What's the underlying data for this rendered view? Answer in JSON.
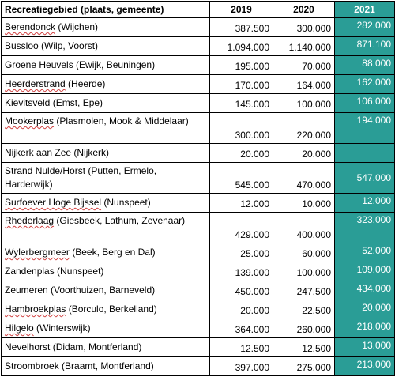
{
  "table": {
    "headers": {
      "name": "Recreatiegebied (plaats, gemeente)",
      "y2019": "2019",
      "y2020": "2020",
      "y2021": "2021"
    },
    "rows": [
      {
        "name": "Berendonck",
        "sub": " (Wijchen)",
        "v2019": "387.500",
        "v2020": "300.000",
        "v2021": "282.000"
      },
      {
        "name": "Bussloo",
        "sub": " (Wilp, Voorst)",
        "v2019": "1.094.000",
        "v2020": "1.140.000",
        "v2021": "871.100"
      },
      {
        "name": "Groene Heuvels",
        "sub": " (Ewijk, Beuningen)",
        "v2019": "195.000",
        "v2020": "70.000",
        "v2021": "88.000"
      },
      {
        "name": "Heerderstrand",
        "sub": " (Heerde)",
        "v2019": "170.000",
        "v2020": "164.000",
        "v2021": "162.000"
      },
      {
        "name": "Kievitsveld",
        "sub": " (Emst, Epe)",
        "v2019": "145.000",
        "v2020": "100.000",
        "v2021": "106.000"
      },
      {
        "name": "Mookerplas",
        "sub": " (Plasmolen, Mook & Middelaar)",
        "v2019": "300.000",
        "v2020": "220.000",
        "v2021": "194.000"
      },
      {
        "name": "Nijkerk aan Zee",
        "sub": " (Nijkerk)",
        "v2019": "20.000",
        "v2020": "20.000",
        "v2021": ""
      },
      {
        "name": "Strand Nulde/Horst",
        "sub": " (Putten, Ermelo, Harderwijk)",
        "v2019": "545.000",
        "v2020": "470.000",
        "v2021": "547.000"
      },
      {
        "name": "Surfoever Hoge Bijssel",
        "sub": " (Nunspeet)",
        "v2019": "12.000",
        "v2020": "10.000",
        "v2021": "12.000"
      },
      {
        "name": "Rhederlaag",
        "sub": " (Giesbeek, Lathum, Zevenaar)",
        "v2019": "429.000",
        "v2020": "400.000",
        "v2021": "323.000"
      },
      {
        "name": "Wylerbergmeer",
        "sub": " (Beek, Berg en Dal)",
        "v2019": "25.000",
        "v2020": "60.000",
        "v2021": "52.000"
      },
      {
        "name": "Zandenplas",
        "sub": " (Nunspeet)",
        "v2019": "139.000",
        "v2020": "100.000",
        "v2021": "109.000"
      },
      {
        "name": "Zeumeren",
        "sub": " (Voorthuizen, Barneveld)",
        "v2019": "450.000",
        "v2020": "247.500",
        "v2021": "434.000"
      },
      {
        "name": "Hambroekplas",
        "sub": " (Borculo, Berkelland)",
        "v2019": "20.000",
        "v2020": "22.500",
        "v2021": "20.000"
      },
      {
        "name": "Hilgelo",
        "sub": " (Winterswijk)",
        "v2019": "364.000",
        "v2020": "260.000",
        "v2021": "218.000"
      },
      {
        "name": "Nevelhorst",
        "sub": " (Didam, Montferland)",
        "v2019": "12.500",
        "v2020": "12.500",
        "v2021": "13.000"
      },
      {
        "name": "Stroombroek",
        "sub": " (Braamt, Montferland)",
        "v2019": "397.000",
        "v2020": "275.000",
        "v2021": "213.000"
      }
    ]
  },
  "colors": {
    "highlight": "#2a9d96",
    "highlight_text": "#ffffff"
  }
}
